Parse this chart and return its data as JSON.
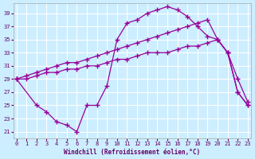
{
  "xlabel": "Windchill (Refroidissement éolien,°C)",
  "background_color": "#cceeff",
  "grid_color": "#ffffff",
  "line_color": "#990099",
  "ylim": [
    20,
    40.5
  ],
  "yticks": [
    21,
    23,
    25,
    27,
    29,
    31,
    33,
    35,
    37,
    39
  ],
  "xlim": [
    -0.3,
    23.3
  ],
  "xticks": [
    0,
    1,
    2,
    3,
    4,
    5,
    6,
    7,
    8,
    9,
    10,
    11,
    12,
    13,
    14,
    15,
    16,
    17,
    18,
    19,
    20,
    21,
    22,
    23
  ],
  "series": [
    {
      "x": [
        0,
        1,
        2,
        3,
        4,
        5,
        6,
        7,
        8,
        9,
        10,
        11,
        12,
        13,
        14,
        15,
        16,
        17,
        18,
        19,
        20,
        21,
        22,
        23
      ],
      "y": [
        29,
        29,
        29.5,
        30,
        30,
        30.5,
        30.5,
        31,
        31,
        31.5,
        32,
        32,
        32.5,
        33,
        33,
        33,
        33.5,
        34,
        34,
        34.5,
        35,
        33,
        27,
        25
      ]
    },
    {
      "x": [
        0,
        1,
        2,
        3,
        4,
        5,
        6,
        7,
        8,
        9,
        10,
        11,
        12,
        13,
        14,
        15,
        16,
        17,
        18,
        19,
        20,
        21,
        22,
        23
      ],
      "y": [
        29,
        29.5,
        30,
        30.5,
        31,
        31.5,
        31.5,
        32,
        32.5,
        33,
        33.5,
        34,
        34.5,
        35,
        35.5,
        36,
        36.5,
        37,
        37.5,
        38,
        35,
        33,
        27,
        25
      ]
    },
    {
      "x": [
        0,
        2,
        3,
        4,
        5,
        6,
        7,
        8,
        9,
        10,
        11,
        12,
        13,
        14,
        15,
        16,
        17,
        18,
        19,
        20,
        21,
        22,
        23
      ],
      "y": [
        29,
        25,
        24,
        22.5,
        22,
        21,
        25,
        25,
        28,
        35,
        37.5,
        38,
        39,
        39.5,
        40,
        39.5,
        38.5,
        37,
        35.5,
        35,
        33,
        29,
        25.5
      ]
    }
  ]
}
